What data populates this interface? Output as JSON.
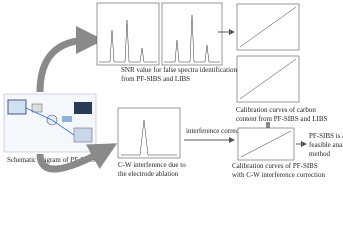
{
  "captions": {
    "snr": [
      "SNR value for false spectra identification",
      "from PF-SIBS and LIBS"
    ],
    "calibration": [
      "Calibration curves of carbon",
      "content from PF-SIBS and LIBS"
    ],
    "schematic": [
      "Schematic diagram of PF-SIBS"
    ],
    "cw": [
      "C-W interference due to",
      "the electrode ablation"
    ],
    "correction_arrow": [
      "interference correction"
    ],
    "corrected": [
      "Calibration curves of PF-SIBS",
      "with C-W interference correction"
    ],
    "conclusion": [
      "PF-SIBS is a",
      "feasible analytical",
      "method"
    ]
  }
}
